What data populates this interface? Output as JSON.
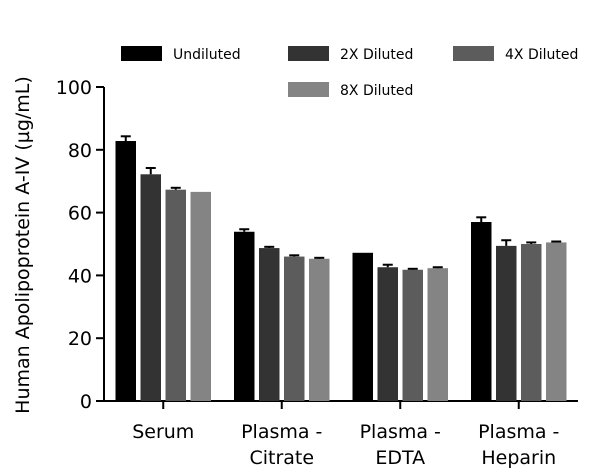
{
  "chart_data": {
    "type": "bar",
    "ylabel": "Human Apolipoprotein A-IV (µg/mL)",
    "xlabel": "",
    "ylim": [
      0,
      100
    ],
    "yticks": [
      0,
      20,
      40,
      60,
      80,
      100
    ],
    "categories": [
      [
        "Serum"
      ],
      [
        "Plasma -",
        "Citrate"
      ],
      [
        "Plasma -",
        "EDTA"
      ],
      [
        "Plasma -",
        "Heparin"
      ]
    ],
    "series": [
      {
        "name": "Undiluted",
        "color": "#000000",
        "values": [
          82.8,
          53.9,
          47.2,
          57.0
        ],
        "errors": [
          1.5,
          0.8,
          0.0,
          1.5
        ]
      },
      {
        "name": "2X Diluted",
        "color": "#333333",
        "values": [
          72.2,
          48.7,
          42.6,
          49.4
        ],
        "errors": [
          2.0,
          0.4,
          0.8,
          1.8
        ]
      },
      {
        "name": "4X Diluted",
        "color": "#5c5c5c",
        "values": [
          67.3,
          46.0,
          41.8,
          50.0
        ],
        "errors": [
          0.6,
          0.4,
          0.3,
          0.5
        ]
      },
      {
        "name": "8X Diluted",
        "color": "#848484",
        "values": [
          66.6,
          45.3,
          42.3,
          50.5
        ],
        "errors": [
          0.0,
          0.3,
          0.3,
          0.3
        ]
      }
    ],
    "legend": "top",
    "grid": false
  }
}
